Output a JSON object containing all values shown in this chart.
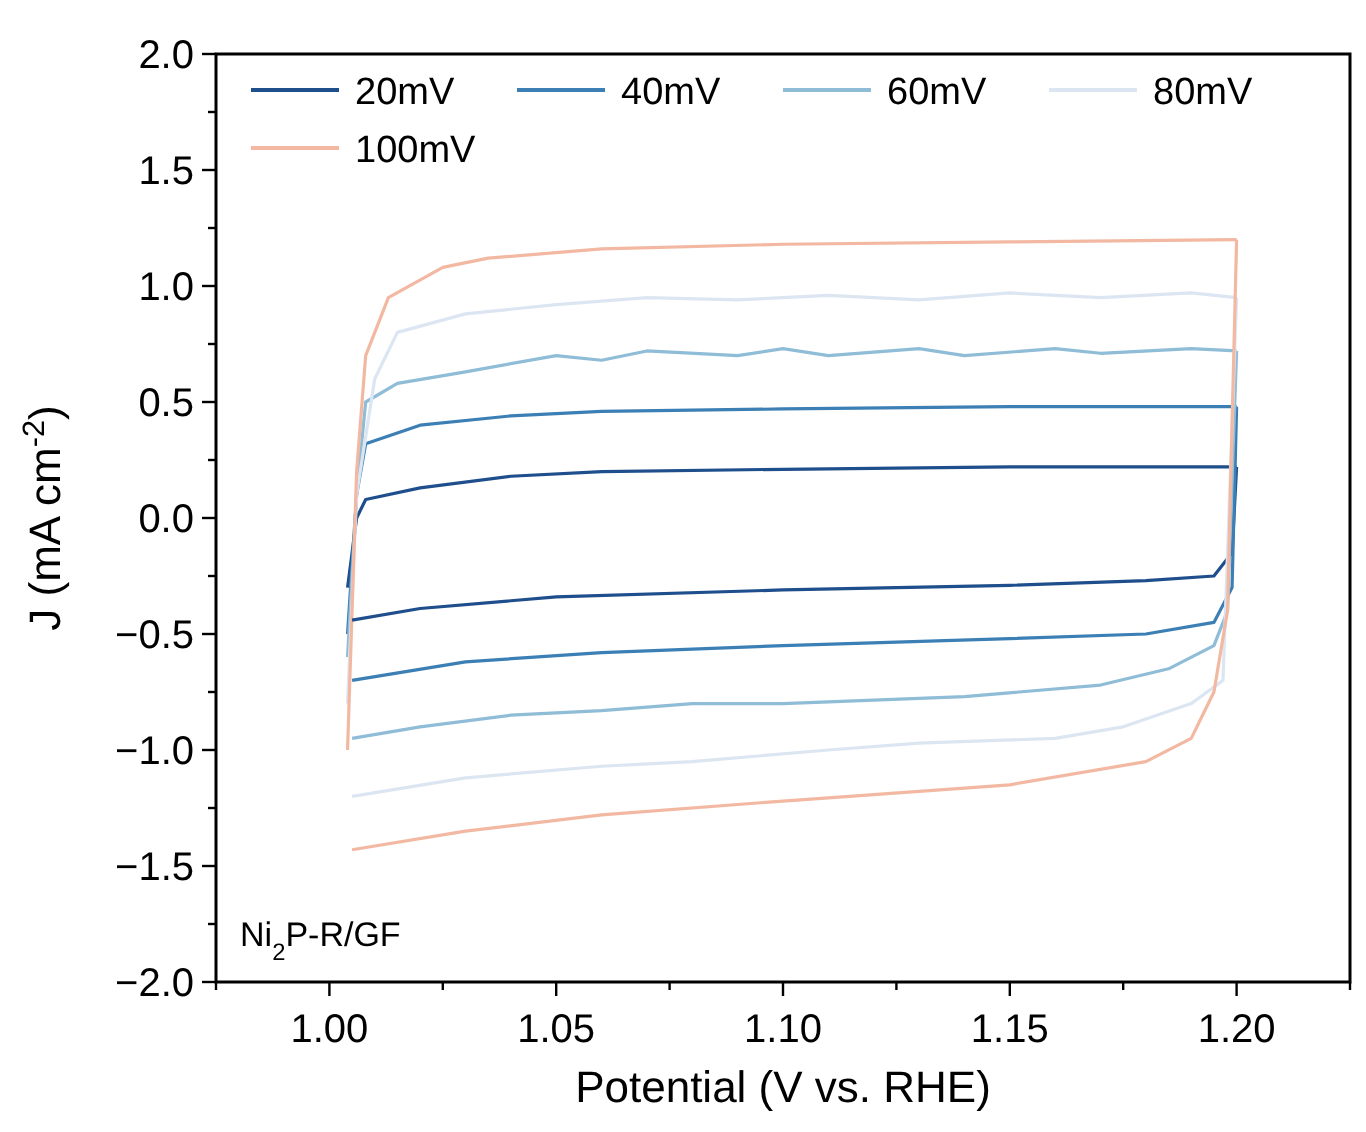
{
  "chart_data": {
    "type": "line",
    "xlabel": "Potential (V vs. RHE)",
    "ylabel": "J (mA cm$^{-2}$)",
    "annotations": [
      "Ni$_{2}$P-R/GF"
    ],
    "legend": "top",
    "grid": false,
    "marker": "none",
    "line_style": "solid",
    "xlim": [
      0.975,
      1.225
    ],
    "ylim": [
      -2,
      2
    ],
    "xticks": [
      {
        "value": 0.975,
        "label": null
      },
      {
        "value": 1.0,
        "label": "1.00"
      },
      {
        "value": 1.025,
        "label": null
      },
      {
        "value": 1.05,
        "label": "1.05"
      },
      {
        "value": 1.075,
        "label": null
      },
      {
        "value": 1.1,
        "label": "1.10"
      },
      {
        "value": 1.125,
        "label": null
      },
      {
        "value": 1.15,
        "label": "1.15"
      },
      {
        "value": 1.175,
        "label": null
      },
      {
        "value": 1.2,
        "label": "1.20"
      },
      {
        "value": 1.225,
        "label": null
      }
    ],
    "yticks": [
      {
        "value": -2,
        "label": "−2.0"
      },
      {
        "value": -1.75,
        "label": null
      },
      {
        "value": -1.5,
        "label": "−1.5"
      },
      {
        "value": -1.25,
        "label": null
      },
      {
        "value": -1,
        "label": "−1.0"
      },
      {
        "value": -0.75,
        "label": null
      },
      {
        "value": -0.5,
        "label": "−0.5"
      },
      {
        "value": -0.25,
        "label": null
      },
      {
        "value": 0,
        "label": "0.0"
      },
      {
        "value": 0.25,
        "label": null
      },
      {
        "value": 0.5,
        "label": "0.5"
      },
      {
        "value": 0.75,
        "label": null
      },
      {
        "value": 1,
        "label": "1.0"
      },
      {
        "value": 1.25,
        "label": null
      },
      {
        "value": 1.5,
        "label": "1.5"
      },
      {
        "value": 1.75,
        "label": null
      },
      {
        "value": 2,
        "label": "2.0"
      }
    ],
    "series": [
      {
        "name": "20mV",
        "color": "#1f4e8c",
        "x": [
          1.004,
          1.006,
          1.008,
          1.02,
          1.04,
          1.06,
          1.1,
          1.15,
          1.2
        ],
        "values": [
          -0.3,
          0.0,
          0.08,
          0.13,
          0.18,
          0.2,
          0.21,
          0.22,
          0.22
        ]
      },
      {
        "name": "40mV",
        "color": "#3b7fb5",
        "x": [
          1.004,
          1.006,
          1.008,
          1.02,
          1.04,
          1.06,
          1.1,
          1.15,
          1.2
        ],
        "values": [
          -0.5,
          0.1,
          0.32,
          0.4,
          0.44,
          0.46,
          0.47,
          0.48,
          0.48
        ]
      },
      {
        "name": "60mV",
        "color": "#8fbcd6",
        "x": [
          1.004,
          1.006,
          1.008,
          1.015,
          1.03,
          1.05,
          1.06,
          1.07,
          1.09,
          1.1,
          1.11,
          1.13,
          1.14,
          1.16,
          1.17,
          1.19,
          1.2
        ],
        "values": [
          -0.6,
          0.1,
          0.5,
          0.58,
          0.63,
          0.7,
          0.68,
          0.72,
          0.7,
          0.73,
          0.7,
          0.73,
          0.7,
          0.73,
          0.71,
          0.73,
          0.72
        ]
      },
      {
        "name": "80mV",
        "color": "#dce6f2",
        "x": [
          1.004,
          1.006,
          1.01,
          1.015,
          1.03,
          1.05,
          1.07,
          1.09,
          1.11,
          1.13,
          1.15,
          1.17,
          1.19,
          1.2
        ],
        "values": [
          -0.8,
          0.1,
          0.6,
          0.8,
          0.88,
          0.92,
          0.95,
          0.94,
          0.96,
          0.94,
          0.97,
          0.95,
          0.97,
          0.95
        ]
      },
      {
        "name": "100mV",
        "color": "#f2b8a2",
        "x": [
          1.004,
          1.006,
          1.008,
          1.013,
          1.025,
          1.035,
          1.06,
          1.1,
          1.15,
          1.2
        ],
        "values": [
          -1.0,
          0.2,
          0.7,
          0.95,
          1.08,
          1.12,
          1.16,
          1.18,
          1.19,
          1.2
        ]
      },
      {
        "color": "#1f4e8c",
        "x": [
          1.2,
          1.199,
          1.195,
          1.18,
          1.15,
          1.1,
          1.05,
          1.02,
          1.005
        ],
        "values": [
          0.22,
          -0.15,
          -0.25,
          -0.27,
          -0.29,
          -0.31,
          -0.34,
          -0.39,
          -0.44
        ]
      },
      {
        "color": "#3b7fb5",
        "x": [
          1.2,
          1.199,
          1.195,
          1.18,
          1.15,
          1.1,
          1.06,
          1.03,
          1.005
        ],
        "values": [
          0.48,
          -0.3,
          -0.45,
          -0.5,
          -0.52,
          -0.55,
          -0.58,
          -0.62,
          -0.7
        ]
      },
      {
        "color": "#8fbcd6",
        "x": [
          1.2,
          1.198,
          1.195,
          1.185,
          1.17,
          1.14,
          1.1,
          1.08,
          1.06,
          1.04,
          1.02,
          1.005
        ],
        "values": [
          0.72,
          -0.4,
          -0.55,
          -0.65,
          -0.72,
          -0.77,
          -0.8,
          -0.8,
          -0.83,
          -0.85,
          -0.9,
          -0.95
        ]
      },
      {
        "color": "#dce6f2",
        "x": [
          1.2,
          1.197,
          1.19,
          1.175,
          1.16,
          1.13,
          1.11,
          1.08,
          1.06,
          1.03,
          1.005
        ],
        "values": [
          0.95,
          -0.7,
          -0.8,
          -0.9,
          -0.95,
          -0.97,
          -1.0,
          -1.05,
          -1.07,
          -1.12,
          -1.2
        ]
      },
      {
        "color": "#f2b8a2",
        "x": [
          1.2,
          1.198,
          1.195,
          1.19,
          1.18,
          1.15,
          1.1,
          1.06,
          1.03,
          1.005
        ],
        "values": [
          1.2,
          -0.4,
          -0.75,
          -0.95,
          -1.05,
          -1.15,
          -1.22,
          -1.28,
          -1.35,
          -1.43
        ]
      }
    ]
  }
}
